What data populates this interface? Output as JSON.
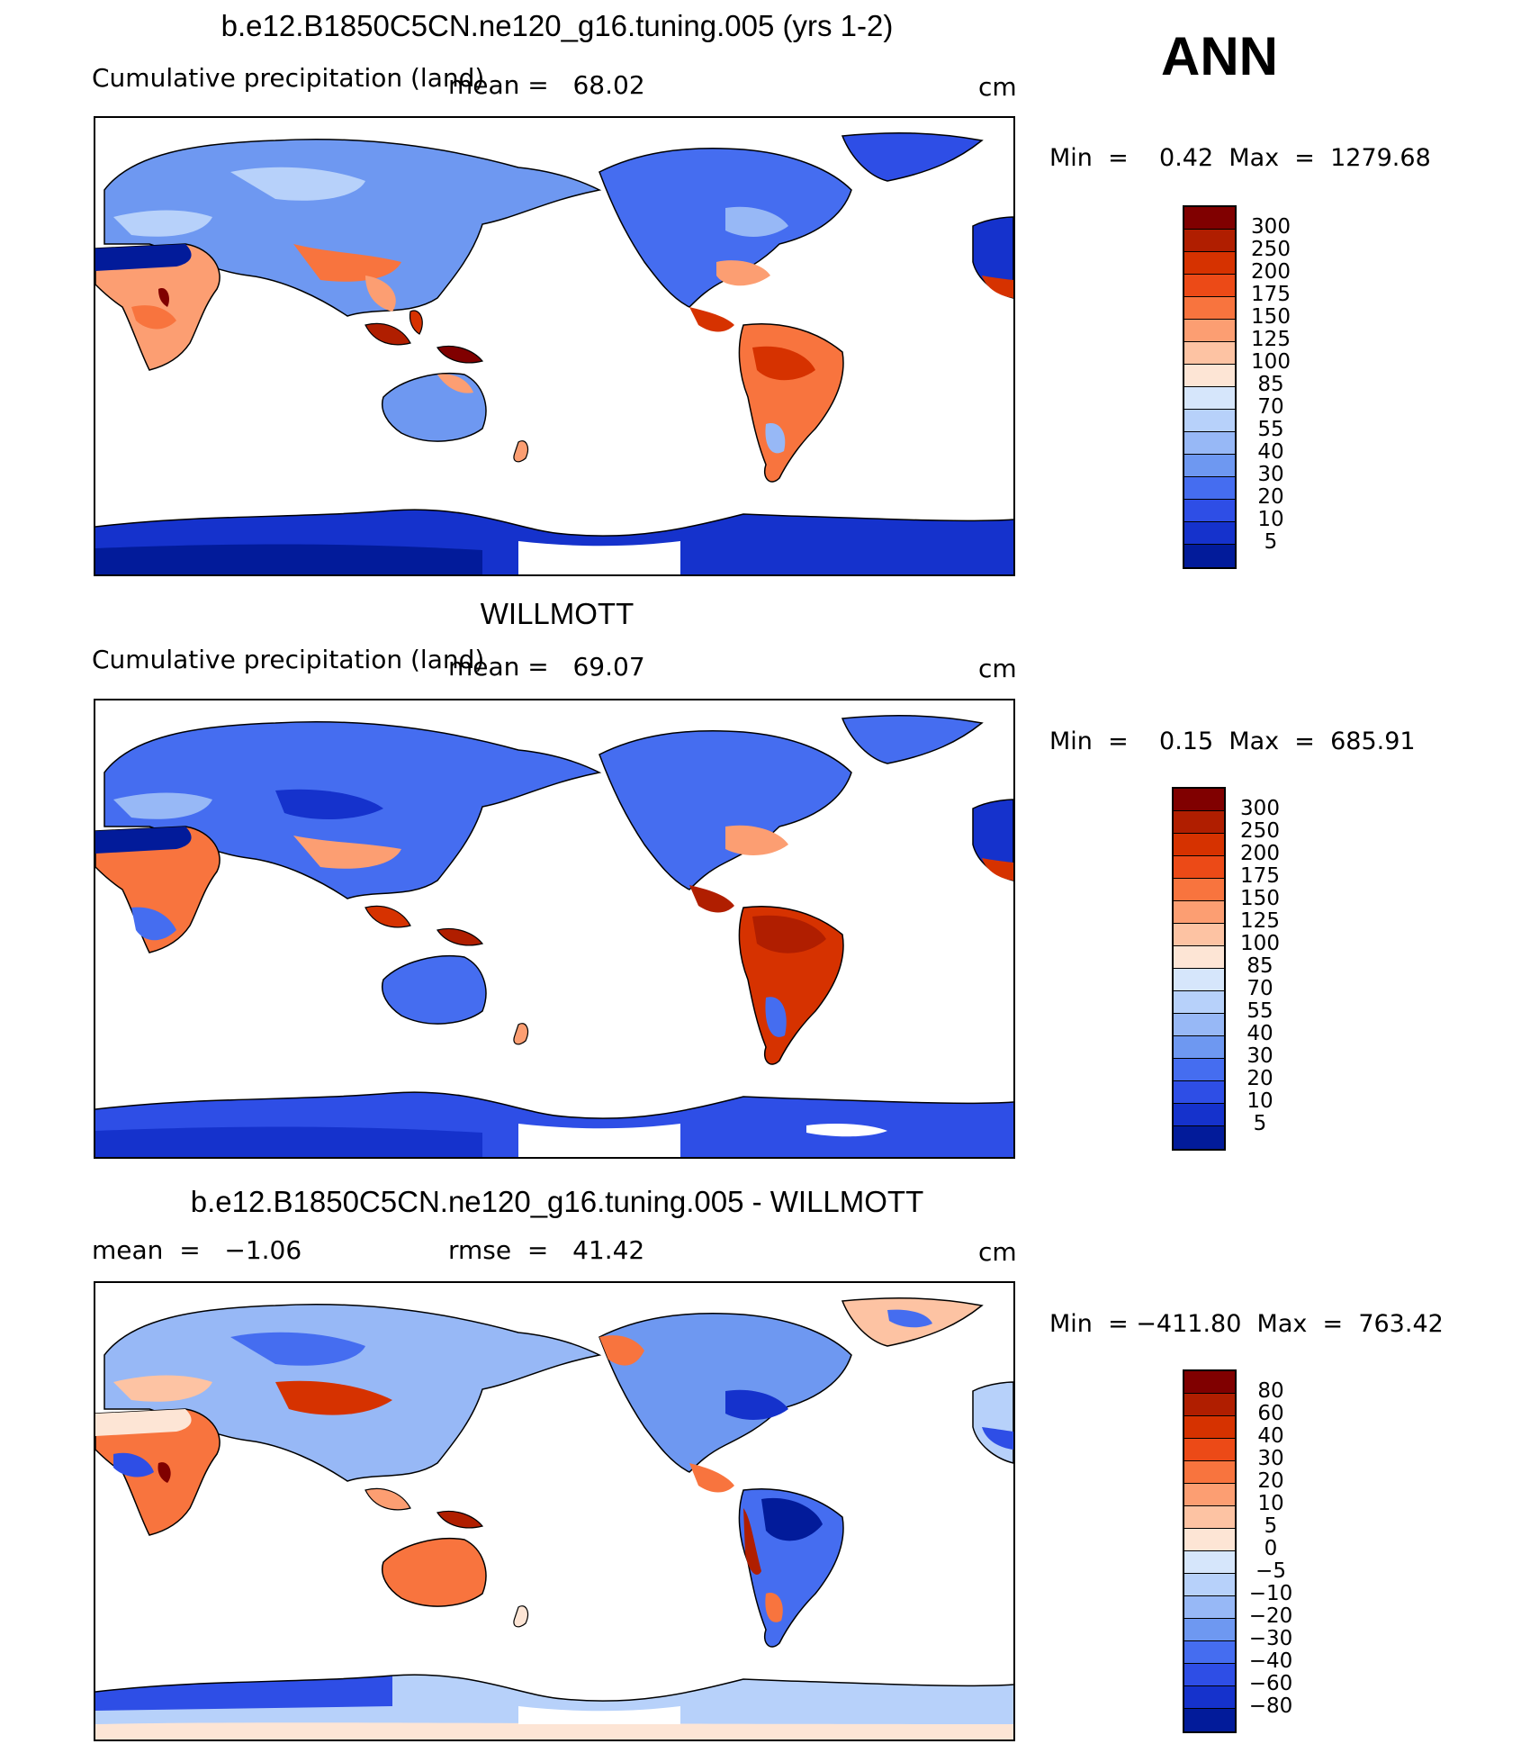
{
  "season": "ANN",
  "panels": [
    {
      "title": "b.e12.B1850C5CN.ne120_g16.tuning.005 (yrs 1-2)",
      "left_label": "Cumulative precipitation (land)",
      "stat1_label": "mean",
      "stat1_value": "68.02",
      "stat2_label": "",
      "stat2_value": "",
      "units": "cm",
      "min": "0.42",
      "max": "1279.68",
      "levels": [
        "300",
        "250",
        "200",
        "175",
        "150",
        "125",
        "100",
        "85",
        "70",
        "55",
        "40",
        "30",
        "20",
        "10",
        "5"
      ],
      "colors": [
        "#800000",
        "#b01e00",
        "#d63200",
        "#ec4a17",
        "#f8743e",
        "#fc9e72",
        "#fdc3a3",
        "#fde5d5",
        "#d6e6fb",
        "#b7d1fa",
        "#97b8f6",
        "#6e98f1",
        "#456df0",
        "#2e4ee6",
        "#1532cc",
        "#021b9a"
      ]
    },
    {
      "title": "WILLMOTT",
      "left_label": "Cumulative precipitation (land)",
      "stat1_label": "mean",
      "stat1_value": "69.07",
      "stat2_label": "",
      "stat2_value": "",
      "units": "cm",
      "min": "0.15",
      "max": "685.91",
      "levels": [
        "300",
        "250",
        "200",
        "175",
        "150",
        "125",
        "100",
        "85",
        "70",
        "55",
        "40",
        "30",
        "20",
        "10",
        "5"
      ],
      "colors": [
        "#800000",
        "#b01e00",
        "#d63200",
        "#ec4a17",
        "#f8743e",
        "#fc9e72",
        "#fdc3a3",
        "#fde5d5",
        "#d6e6fb",
        "#b7d1fa",
        "#97b8f6",
        "#6e98f1",
        "#456df0",
        "#2e4ee6",
        "#1532cc",
        "#021b9a"
      ]
    },
    {
      "title": "b.e12.B1850C5CN.ne120_g16.tuning.005 - WILLMOTT",
      "left_label": "",
      "stat1_label": "mean",
      "stat1_value": "−1.06",
      "stat2_label": "rmse",
      "stat2_value": "41.42",
      "units": "cm",
      "min": "−411.80",
      "max": "763.42",
      "levels": [
        "80",
        "60",
        "40",
        "30",
        "20",
        "10",
        "5",
        "0",
        "−5",
        "−10",
        "−20",
        "−30",
        "−40",
        "−60",
        "−80"
      ],
      "colors": [
        "#800000",
        "#b01e00",
        "#d63200",
        "#ec4a17",
        "#f8743e",
        "#fc9e72",
        "#fdc3a3",
        "#fde5d5",
        "#d6e6fb",
        "#b7d1fa",
        "#97b8f6",
        "#6e98f1",
        "#456df0",
        "#2e4ee6",
        "#1532cc",
        "#021b9a"
      ]
    }
  ]
}
